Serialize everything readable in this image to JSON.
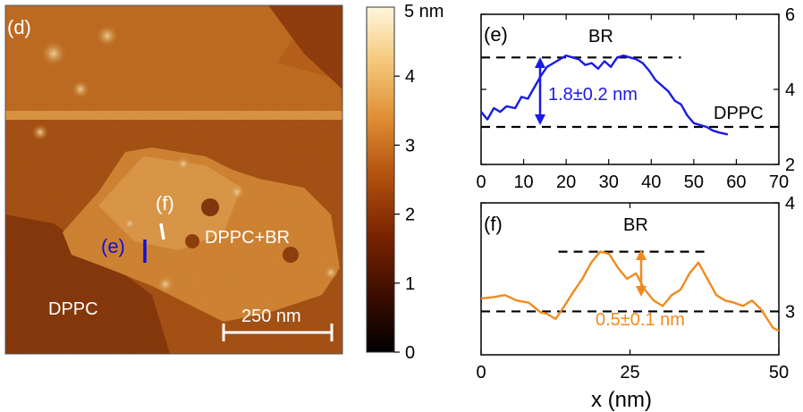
{
  "afm_image": {
    "panel_label": "(d)",
    "region_labels": [
      "DPPC",
      "DPPC+BR"
    ],
    "profile_marker_labels": [
      "(e)",
      "(f)"
    ],
    "scale_bar_label": "250 nm",
    "marker_colors": {
      "e": "#1010d8",
      "f": "#ffffff"
    }
  },
  "colorbar": {
    "unit_label": "5 nm",
    "ticks": [
      "0",
      "1",
      "2",
      "3",
      "4"
    ],
    "colormap": [
      "#000000",
      "#3a0d00",
      "#7a2400",
      "#b45410",
      "#df8f34",
      "#f4c77a",
      "#fff6dc"
    ]
  },
  "colors": {
    "panel_e_line": "#1a1ae6",
    "panel_f_line": "#f08a1e",
    "annotation_e": "#1a1ae6",
    "annotation_f": "#f08a1e"
  },
  "chart_data": [
    {
      "type": "line",
      "panel_label": "(e)",
      "xlim": [
        0,
        70
      ],
      "ylim": [
        2,
        6
      ],
      "x_ticks": [
        "0",
        "10",
        "20",
        "30",
        "40",
        "50",
        "60",
        "70"
      ],
      "y_ticks": [
        "2",
        "4",
        "6"
      ],
      "y_axis_side": "right",
      "series": [
        {
          "x": [
            0,
            1.5,
            3,
            4.5,
            6,
            8,
            9.5,
            11,
            12.5,
            14,
            15.5,
            17,
            18.5,
            20,
            21.5,
            23,
            24.5,
            26,
            27.5,
            29,
            30.5,
            32,
            33.5,
            35,
            36.5,
            38,
            39.5,
            41,
            42.5,
            44,
            45.5,
            47,
            48.5,
            50,
            51.5,
            53,
            54.5,
            56,
            58
          ],
          "y": [
            3.4,
            3.2,
            3.5,
            3.4,
            3.55,
            3.5,
            3.8,
            3.75,
            4.05,
            4.35,
            4.6,
            4.7,
            4.8,
            4.9,
            4.85,
            4.8,
            4.65,
            4.7,
            4.55,
            4.75,
            4.6,
            4.85,
            4.9,
            4.85,
            4.8,
            4.7,
            4.5,
            4.25,
            4.1,
            3.95,
            3.7,
            3.6,
            3.3,
            3.1,
            3.05,
            3.0,
            2.9,
            2.85,
            2.8
          ]
        }
      ],
      "reference_lines": [
        4.85,
        3.0
      ],
      "annotations": [
        "BR",
        "1.8±0.2 nm",
        "DPPC"
      ]
    },
    {
      "type": "line",
      "panel_label": "(f)",
      "xlim": [
        0,
        50
      ],
      "ylim": [
        2.6,
        4
      ],
      "x_ticks": [
        "0",
        "25",
        "50"
      ],
      "y_ticks": [
        "3",
        "4"
      ],
      "y_axis_side": "right",
      "xlabel": "x (nm)",
      "series": [
        {
          "x": [
            0,
            2,
            4,
            6,
            8,
            10,
            11,
            12.5,
            14,
            15.5,
            17,
            18.5,
            20,
            21.5,
            23,
            24.5,
            26,
            27.5,
            29,
            30.5,
            32,
            33.5,
            35,
            36.5,
            38,
            39.5,
            41,
            42.5,
            44,
            45.5,
            47,
            49,
            50
          ],
          "y": [
            3.12,
            3.13,
            3.15,
            3.1,
            3.08,
            2.99,
            2.98,
            2.93,
            3.05,
            3.18,
            3.3,
            3.45,
            3.55,
            3.53,
            3.4,
            3.3,
            3.35,
            3.2,
            3.1,
            3.05,
            3.15,
            3.2,
            3.35,
            3.45,
            3.3,
            3.15,
            3.1,
            3.08,
            3.05,
            3.1,
            3.02,
            2.85,
            2.82
          ]
        }
      ],
      "reference_lines": [
        3.55,
        3.0
      ],
      "annotations": [
        "BR",
        "0.5±0.1 nm"
      ]
    }
  ]
}
